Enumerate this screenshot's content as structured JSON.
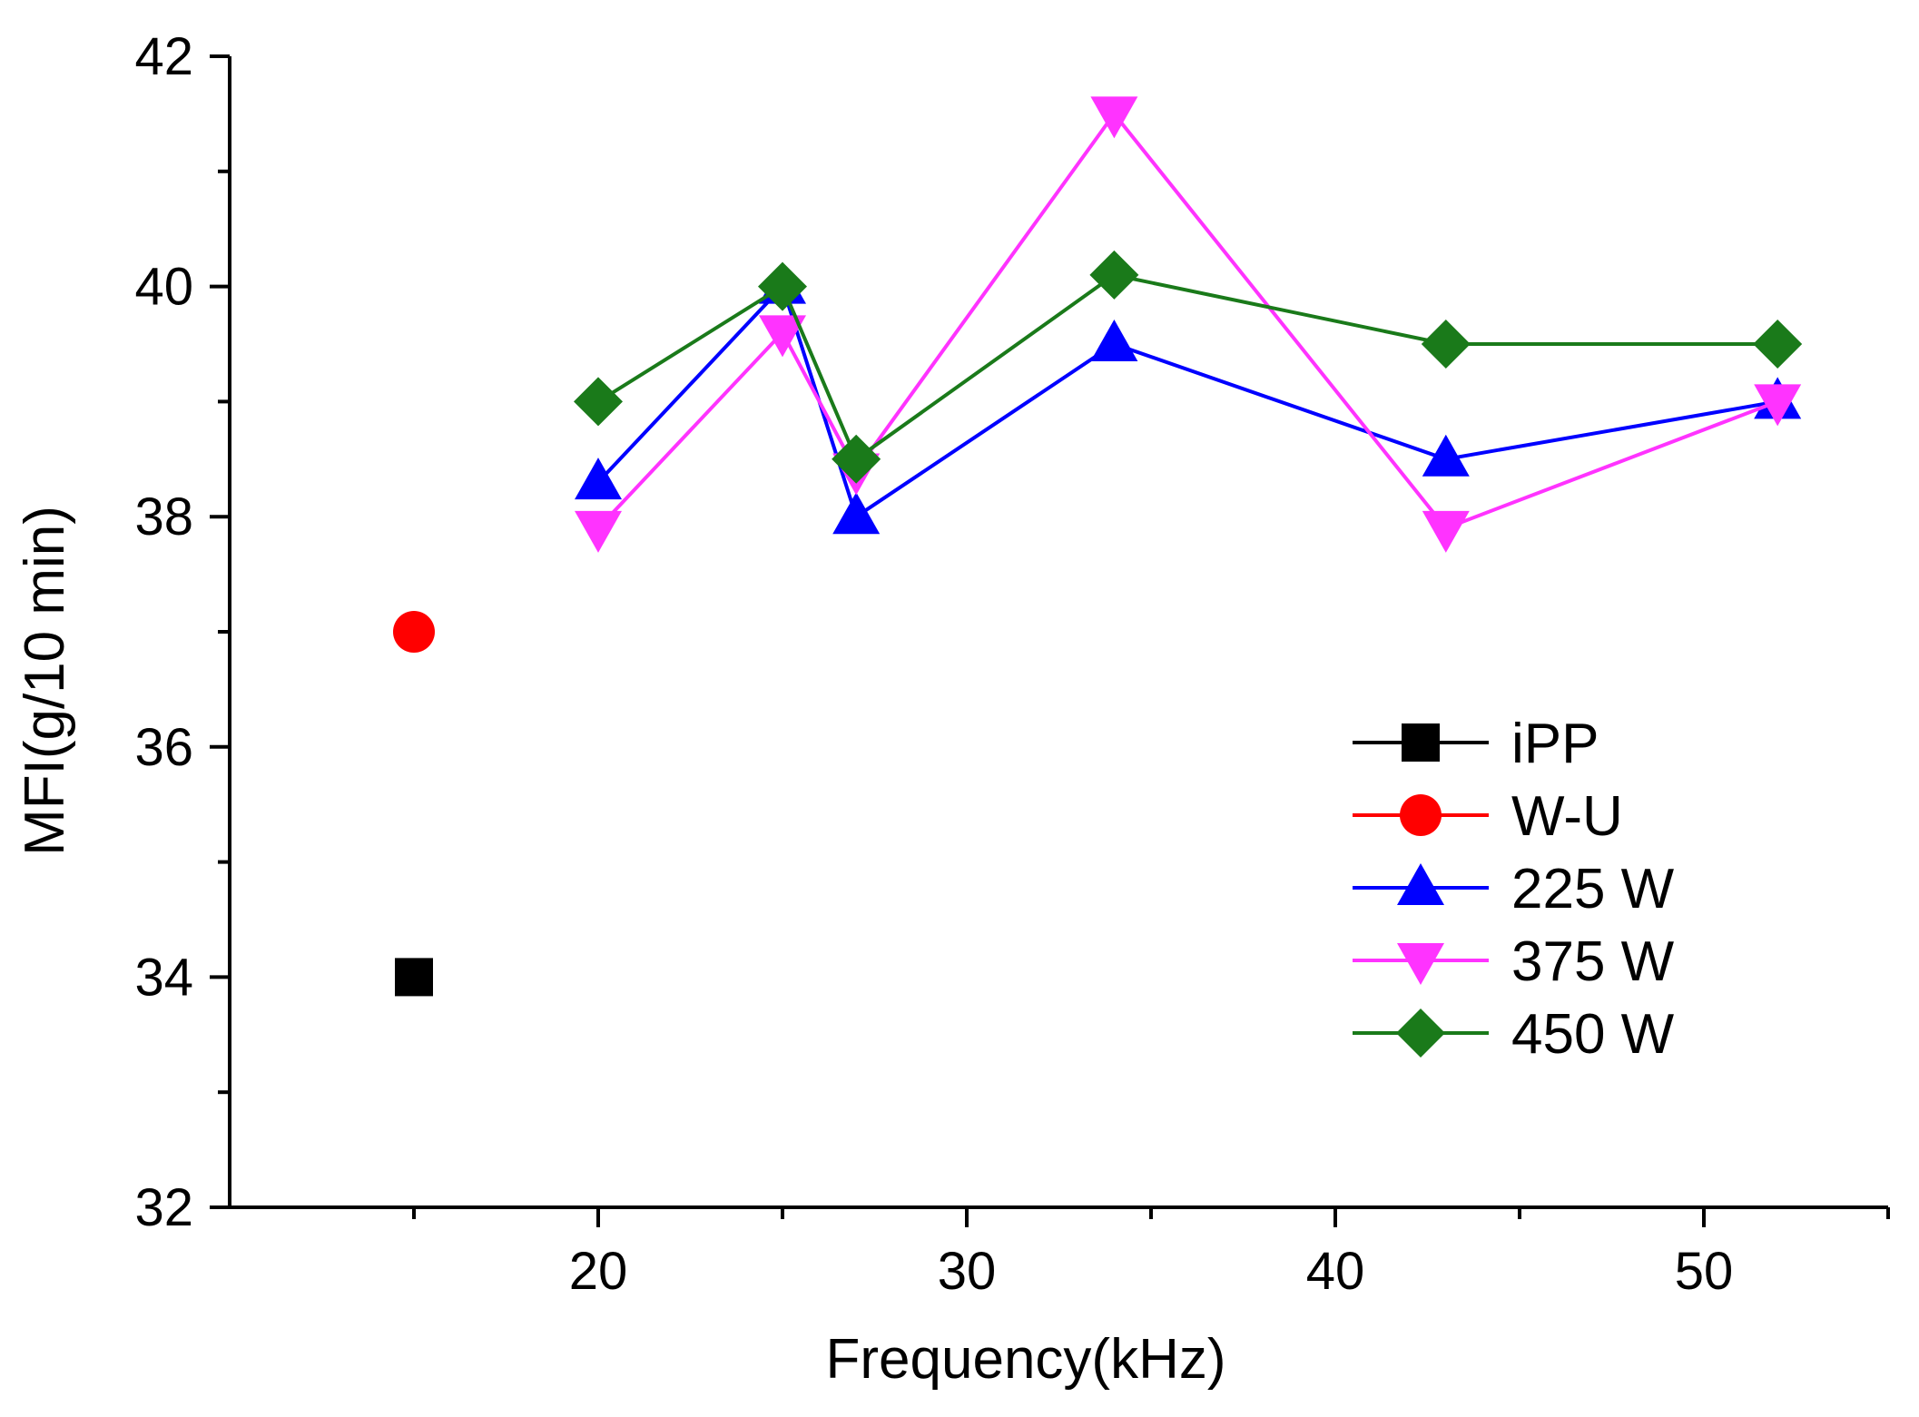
{
  "chart_data": {
    "type": "line",
    "title": "",
    "xlabel": "Frequency(kHz)",
    "ylabel": "MFI(g/10 min)",
    "xlim": [
      10,
      55
    ],
    "ylim": [
      32,
      42
    ],
    "x_ticks": [
      20,
      30,
      40,
      50
    ],
    "x_tick_labels": [
      "20",
      "30",
      "40",
      "50"
    ],
    "y_ticks": [
      32,
      34,
      36,
      38,
      40,
      42
    ],
    "y_tick_labels": [
      "32",
      "34",
      "36",
      "38",
      "40",
      "42"
    ],
    "grid": false,
    "legend_position": "center-right",
    "series": [
      {
        "name": "iPP",
        "color": "#000000",
        "marker": "square",
        "points": [
          [
            15,
            34.0
          ]
        ]
      },
      {
        "name": "W-U",
        "color": "#ff0000",
        "marker": "circle",
        "points": [
          [
            15,
            37.0
          ]
        ]
      },
      {
        "name": "225 W",
        "color": "#0000ff",
        "marker": "triangle-up",
        "points": [
          [
            20,
            38.3
          ],
          [
            25,
            40.0
          ],
          [
            27,
            38.0
          ],
          [
            34,
            39.5
          ],
          [
            43,
            38.5
          ],
          [
            52,
            39.0
          ]
        ]
      },
      {
        "name": "375 W",
        "color": "#ff33ff",
        "marker": "triangle-down",
        "points": [
          [
            20,
            37.9
          ],
          [
            25,
            39.6
          ],
          [
            27,
            38.4
          ],
          [
            34,
            41.5
          ],
          [
            43,
            37.9
          ],
          [
            52,
            39.0
          ]
        ]
      },
      {
        "name": "450 W",
        "color": "#1a7a1a",
        "marker": "diamond",
        "points": [
          [
            20,
            39.0
          ],
          [
            25,
            40.0
          ],
          [
            27,
            38.5
          ],
          [
            34,
            40.1
          ],
          [
            43,
            39.5
          ],
          [
            52,
            39.5
          ]
        ]
      }
    ]
  }
}
